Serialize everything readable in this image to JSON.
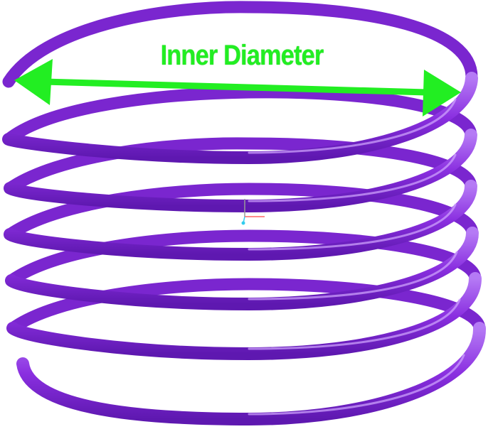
{
  "diagram": {
    "subject": "helical-coil-spring",
    "annotation": {
      "label": "Inner Diameter"
    },
    "turns": 6,
    "colors": {
      "coil": "#8a2fe0",
      "coil_highlight": "#c58cff",
      "coil_shadow": "#5a16a8",
      "arrow": "#22ee22",
      "axis_x": "#ff6666",
      "axis_y": "#999999",
      "axis_z": "#33ccee"
    }
  }
}
